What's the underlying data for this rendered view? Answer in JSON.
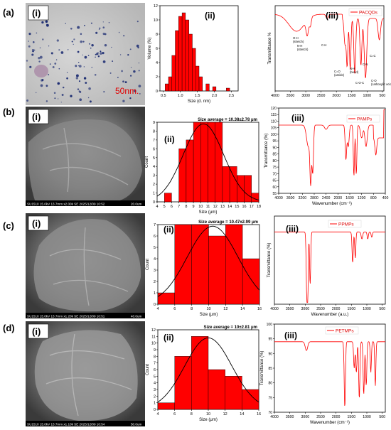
{
  "figure": {
    "rows": [
      {
        "label": "(a)",
        "panels": [
          {
            "roman": "(i)",
            "type": "micrograph",
            "scale_bar": "50nm."
          },
          {
            "roman": "(ii)",
            "type": "histogram",
            "xlabel": "Size (d. nm)",
            "ylabel": "Volume (%)",
            "title": ""
          },
          {
            "roman": "(iii)",
            "type": "spectrum",
            "legend": "PACQDs",
            "xlabel": "",
            "ylabel": "Transmittance %",
            "annotations": [
              "O-H\n(stretch)",
              "N-H\n(stretch)",
              "C-H",
              "C=O\n(amide)",
              "N-H\n(bend)",
              "C-N",
              "C-O\n(carboxylic acid)",
              "C-O-C",
              "C=C"
            ]
          }
        ]
      },
      {
        "label": "(b)",
        "panels": [
          {
            "roman": "(i)",
            "type": "sem",
            "caption": "SU1510 15.0kV 13.7mm x2.00k SE  2025/12/09 10:52",
            "scale": "20.0um"
          },
          {
            "roman": "(ii)",
            "type": "histogram",
            "xlabel": "Size (μm)",
            "ylabel": "Count",
            "title": "Size average = 10.38±2.78 μm"
          },
          {
            "roman": "(iii)",
            "type": "spectrum",
            "legend": "PAMPs",
            "xlabel": "Wavenumber (cm⁻¹)",
            "ylabel": "Transmittance (%)"
          }
        ]
      },
      {
        "label": "(c)",
        "panels": [
          {
            "roman": "(i)",
            "type": "sem",
            "caption": "SU1510 15.0kV 13.7mm x1.20k SE  2025/12/09 10:51",
            "scale": "40.0um"
          },
          {
            "roman": "(ii)",
            "type": "histogram",
            "xlabel": "Size (μm)",
            "ylabel": "Count",
            "title": "Size average = 10.47±2.99 μm"
          },
          {
            "roman": "(iii)",
            "type": "spectrum",
            "legend": "PPMPs",
            "xlabel": "Wavenumber (a.u.)",
            "ylabel": "Transmittance (%)"
          }
        ]
      },
      {
        "label": "(d)",
        "panels": [
          {
            "roman": "(i)",
            "type": "sem",
            "caption": "SU1510 15.0kV 13.7mm x1.10k SE  2025/12/09 10:54",
            "scale": "50.0um"
          },
          {
            "roman": "(ii)",
            "type": "histogram",
            "xlabel": "Size (μm)",
            "ylabel": "Count",
            "title": "Size average = 10±2.81 μm"
          },
          {
            "roman": "(iii)",
            "type": "spectrum",
            "legend": "PETMPs",
            "xlabel": "Wavenumber (cm⁻¹)",
            "ylabel": "Transmittance (%)"
          }
        ]
      }
    ]
  },
  "chart_data": [
    {
      "id": "a-ii",
      "type": "bar",
      "title": "",
      "xlabel": "Size (d. nm)",
      "ylabel": "Volume (%)",
      "xticks": [
        "0.5",
        "1.0",
        "1.5",
        "2.0",
        "2.5"
      ],
      "yticks": [
        "0",
        "2",
        "4",
        "6",
        "8",
        "10",
        "12"
      ],
      "xlim": [
        0.4,
        2.7
      ],
      "ylim": [
        0,
        12
      ],
      "x": [
        0.6,
        0.7,
        0.8,
        0.9,
        1.0,
        1.1,
        1.2,
        1.3,
        1.4,
        1.5,
        1.6,
        1.8,
        2.0,
        2.4
      ],
      "values": [
        1.0,
        2.0,
        5.0,
        8.5,
        10.5,
        11.0,
        10.0,
        8.0,
        6.0,
        3.5,
        2.0,
        1.0,
        0.6,
        0.4
      ]
    },
    {
      "id": "a-iii",
      "type": "line",
      "legend": "PACQDs",
      "xlabel": "",
      "ylabel": "Transmittance %",
      "xticks": [
        "4000",
        "3500",
        "3000",
        "2500",
        "2000",
        "1500",
        "1000",
        "500"
      ],
      "xlim": [
        4000,
        450
      ]
    },
    {
      "id": "b-ii",
      "type": "bar",
      "title": "Size average = 10.38±2.78 μm",
      "xlabel": "Size (μm)",
      "ylabel": "Count",
      "xticks": [
        "4",
        "5",
        "6",
        "7",
        "8",
        "9",
        "10",
        "11",
        "12",
        "13",
        "14",
        "15",
        "16",
        "17",
        "18"
      ],
      "yticks": [
        "0",
        "1",
        "2",
        "3",
        "4",
        "5",
        "6",
        "7",
        "8",
        "9"
      ],
      "xlim": [
        4,
        18
      ],
      "ylim": [
        0,
        9
      ],
      "bin_width": 1,
      "x": [
        5,
        7,
        8,
        9,
        10,
        11,
        12,
        13,
        14,
        15,
        16,
        17
      ],
      "values": [
        1,
        6,
        7,
        9,
        9,
        9,
        9,
        4,
        4,
        3,
        3,
        1
      ]
    },
    {
      "id": "b-iii",
      "type": "line",
      "legend": "PAMPs",
      "xlabel": "Wavenumber (cm⁻¹)",
      "ylabel": "Transmittance (%)",
      "xticks": [
        "4000",
        "3600",
        "3200",
        "2800",
        "2400",
        "2000",
        "1600",
        "1200",
        "800",
        "400"
      ],
      "yticks": [
        "55",
        "60",
        "65",
        "70",
        "75",
        "80",
        "85",
        "90",
        "95",
        "100",
        "105",
        "110",
        "115",
        "120"
      ],
      "xlim": [
        4000,
        400
      ],
      "ylim": [
        55,
        120
      ]
    },
    {
      "id": "c-ii",
      "type": "bar",
      "title": "Size average = 10.47±2.99 μm",
      "xlabel": "Size (μm)",
      "ylabel": "Count",
      "xticks": [
        "4",
        "6",
        "8",
        "10",
        "12",
        "14",
        "16"
      ],
      "yticks": [
        "0",
        "1",
        "2",
        "3",
        "4",
        "5",
        "6",
        "7"
      ],
      "xlim": [
        4,
        16
      ],
      "ylim": [
        0,
        7
      ],
      "bin_width": 2,
      "x": [
        4,
        6,
        8,
        10,
        12,
        14
      ],
      "values": [
        1,
        7,
        7,
        6,
        7,
        4
      ]
    },
    {
      "id": "c-iii",
      "type": "line",
      "legend": "PPMPs",
      "xlabel": "Wavenumber (a.u.)",
      "ylabel": "Transmittance (%)",
      "xticks": [
        "4000",
        "3500",
        "3000",
        "2500",
        "2000",
        "1500",
        "1000",
        "500"
      ],
      "xlim": [
        4000,
        400
      ]
    },
    {
      "id": "d-ii",
      "type": "bar",
      "title": "Size average = 10±2.81 μm",
      "xlabel": "Size (μm)",
      "ylabel": "Count",
      "xticks": [
        "4",
        "6",
        "8",
        "10",
        "12",
        "14",
        "16"
      ],
      "yticks": [
        "0",
        "1",
        "2",
        "3",
        "4",
        "5",
        "6",
        "7",
        "8",
        "9",
        "10",
        "11",
        "12"
      ],
      "xlim": [
        4,
        16
      ],
      "ylim": [
        0,
        12
      ],
      "bin_width": 2,
      "x": [
        4,
        6,
        8,
        10,
        12,
        14
      ],
      "values": [
        1,
        8,
        11,
        6,
        5,
        3
      ]
    },
    {
      "id": "d-iii",
      "type": "line",
      "legend": "PETMPs",
      "xlabel": "Wavenumber (cm⁻¹)",
      "ylabel": "Transmittance (%)",
      "xticks": [
        "4000",
        "3500",
        "3000",
        "2500",
        "2000",
        "1500",
        "1000",
        "500"
      ],
      "yticks": [
        "70",
        "75",
        "80",
        "85",
        "90",
        "95",
        "100"
      ],
      "xlim": [
        4000,
        400
      ],
      "ylim": [
        70,
        100
      ]
    }
  ],
  "colors": {
    "bar": "#ff0000",
    "line": "#ff0000",
    "fit": "#000000",
    "micro_bg": "#c8c8c8",
    "sem_bg": "#7a7a7a"
  }
}
